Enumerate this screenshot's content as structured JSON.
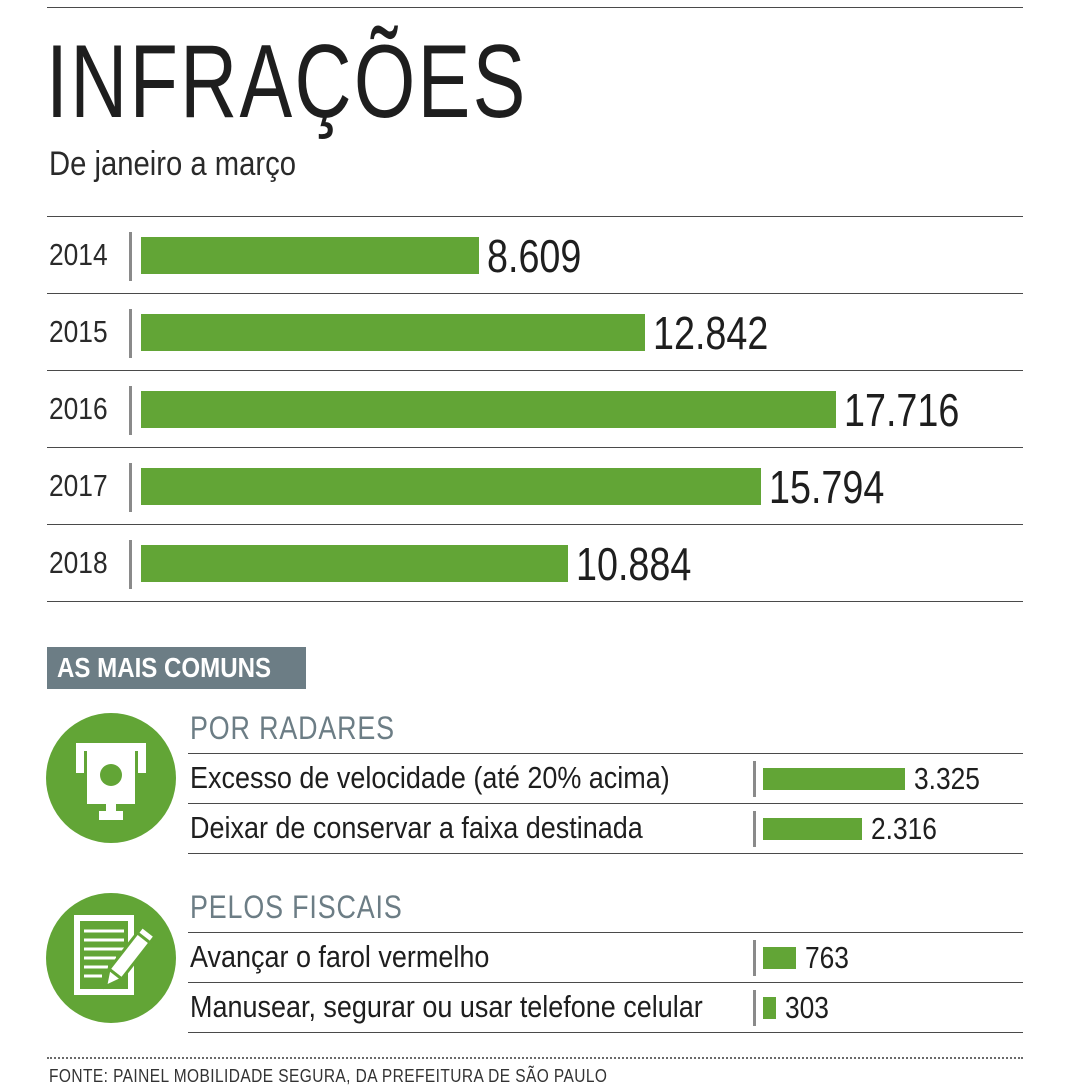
{
  "header": {
    "title": "INFRAÇÕES",
    "subtitle": "De janeiro a março"
  },
  "chart_data": {
    "type": "bar",
    "orientation": "horizontal",
    "title": "INFRAÇÕES",
    "subtitle": "De janeiro a março",
    "categories": [
      "2014",
      "2015",
      "2016",
      "2017",
      "2018"
    ],
    "values": [
      8609,
      12842,
      17716,
      15794,
      10884
    ],
    "value_labels": [
      "8.609",
      "12.842",
      "17.716",
      "15.794",
      "10.884"
    ],
    "color": "#62a536"
  },
  "section": {
    "title": "AS MAIS COMUNS",
    "badge_color": "#6c7d85"
  },
  "groups": [
    {
      "title": "POR RADARES",
      "icon": "speed-camera-icon",
      "items": [
        {
          "label": "Excesso de velocidade (até 20% acima)",
          "value": 3325,
          "value_label": "3.325"
        },
        {
          "label": "Deixar de conservar a faixa destinada",
          "value": 2316,
          "value_label": "2.316"
        }
      ]
    },
    {
      "title": "PELOS FISCAIS",
      "icon": "notepad-pen-icon",
      "items": [
        {
          "label": "Avançar o farol vermelho",
          "value": 763,
          "value_label": "763"
        },
        {
          "label": "Manusear, segurar ou usar telefone celular",
          "value": 303,
          "value_label": "303"
        }
      ]
    }
  ],
  "footer": {
    "source": "FONTE: PAINEL MOBILIDADE SEGURA, DA PREFEITURA DE SÃO PAULO"
  },
  "colors": {
    "bar": "#62a536",
    "icon_background": "#62a536",
    "badge": "#6c7d85",
    "text": "#1e1e1e"
  }
}
